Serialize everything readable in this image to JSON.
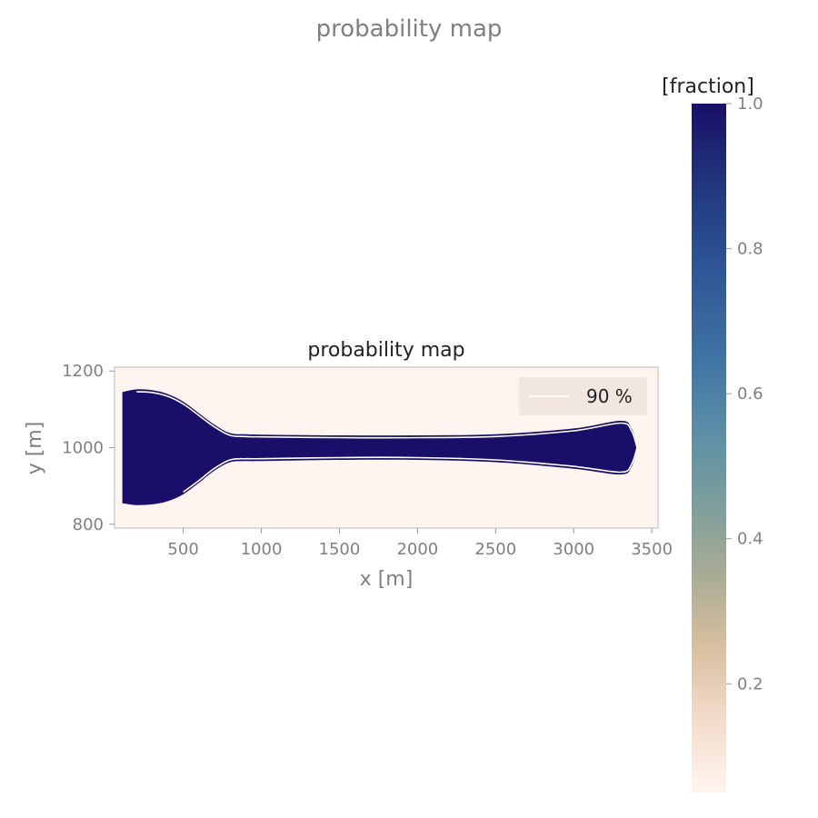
{
  "figure": {
    "suptitle": "probability map"
  },
  "chart_data": {
    "type": "heatmap",
    "title": "probability map",
    "xlabel": "x [m]",
    "ylabel": "y [m]",
    "xlim": [
      60,
      3540
    ],
    "ylim": [
      790,
      1210
    ],
    "x_ticks": [
      500,
      1000,
      1500,
      2000,
      2500,
      3000,
      3500
    ],
    "y_ticks": [
      800,
      1000,
      1200
    ],
    "background_value": 0.05,
    "fill_value": 1.0,
    "upper_boundary": [
      [
        110,
        1145
      ],
      [
        200,
        1152
      ],
      [
        300,
        1150
      ],
      [
        400,
        1140
      ],
      [
        500,
        1120
      ],
      [
        600,
        1090
      ],
      [
        700,
        1060
      ],
      [
        800,
        1038
      ],
      [
        900,
        1035
      ],
      [
        1000,
        1034
      ],
      [
        1500,
        1032
      ],
      [
        2000,
        1032
      ],
      [
        2500,
        1035
      ],
      [
        3000,
        1050
      ],
      [
        3300,
        1070
      ],
      [
        3370,
        1050
      ],
      [
        3410,
        1000
      ]
    ],
    "lower_boundary": [
      [
        110,
        855
      ],
      [
        200,
        850
      ],
      [
        300,
        852
      ],
      [
        400,
        860
      ],
      [
        500,
        878
      ],
      [
        600,
        908
      ],
      [
        700,
        940
      ],
      [
        800,
        962
      ],
      [
        900,
        965
      ],
      [
        1000,
        965
      ],
      [
        1500,
        968
      ],
      [
        2000,
        968
      ],
      [
        2500,
        962
      ],
      [
        3000,
        945
      ],
      [
        3300,
        930
      ],
      [
        3370,
        950
      ],
      [
        3410,
        1000
      ]
    ],
    "contour": {
      "level": 90,
      "label": "90 %",
      "color": "#ffffff"
    },
    "legend": {
      "position": "top-right",
      "entries": [
        "90 %"
      ]
    },
    "colorbar": {
      "label": "[fraction]",
      "min": 0.05,
      "max": 1.0,
      "ticks": [
        "1.0",
        "0.8",
        "0.6",
        "0.4",
        "0.2"
      ],
      "tick_values": [
        1.0,
        0.8,
        0.6,
        0.4,
        0.2
      ],
      "colors": [
        {
          "v": 0.05,
          "c": "#fff5f0"
        },
        {
          "v": 0.15,
          "c": "#f3dccb"
        },
        {
          "v": 0.25,
          "c": "#d8bfa0"
        },
        {
          "v": 0.35,
          "c": "#a9ab94"
        },
        {
          "v": 0.45,
          "c": "#7c9e9c"
        },
        {
          "v": 0.55,
          "c": "#5a8ea6"
        },
        {
          "v": 0.65,
          "c": "#3f73a3"
        },
        {
          "v": 0.8,
          "c": "#2b4f92"
        },
        {
          "v": 0.9,
          "c": "#20337a"
        },
        {
          "v": 1.0,
          "c": "#1a0f68"
        }
      ]
    }
  }
}
